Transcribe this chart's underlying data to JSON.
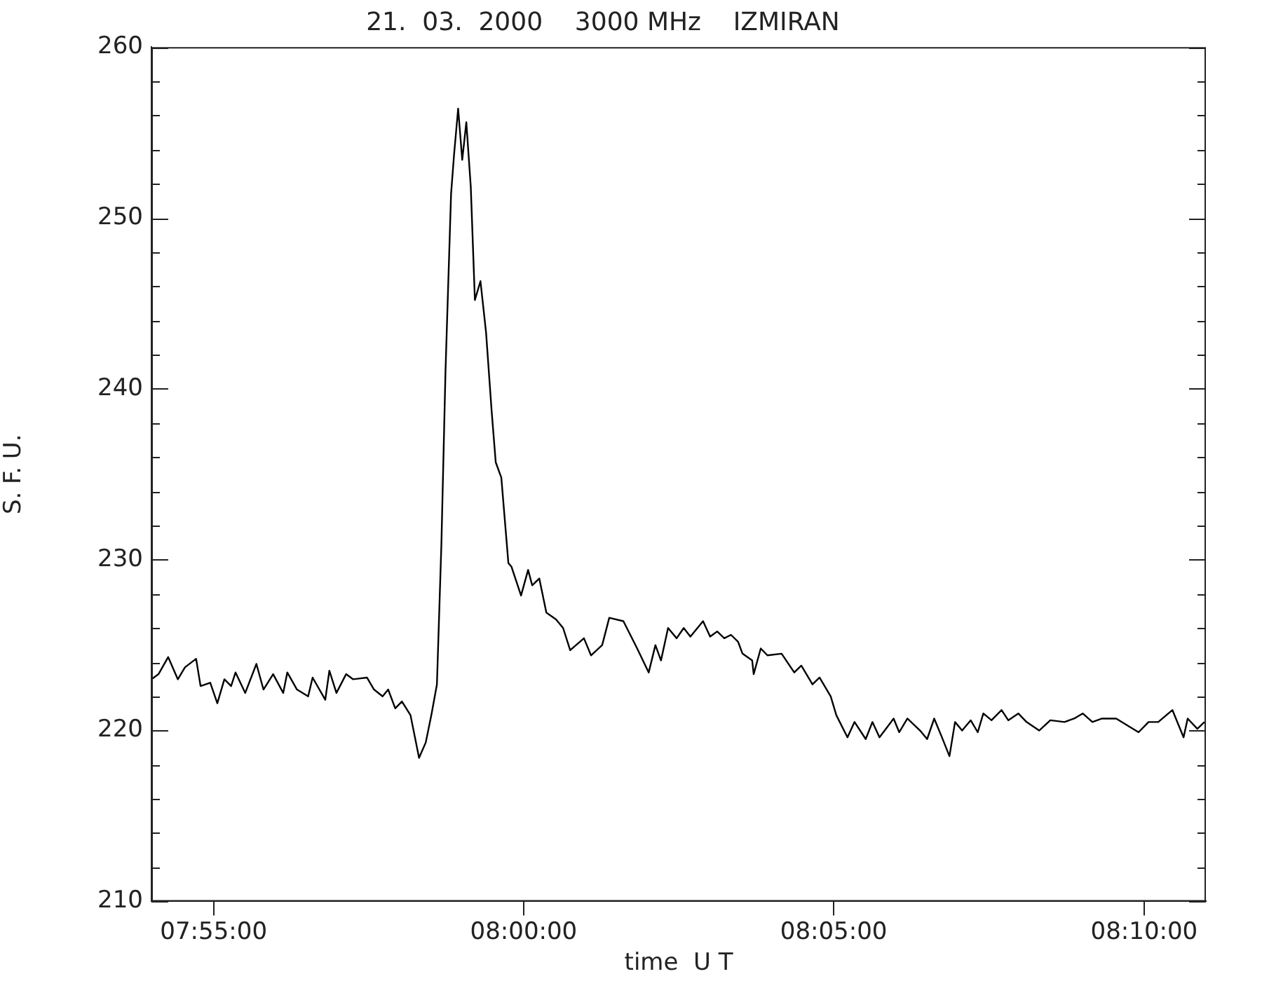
{
  "chart_data": {
    "type": "line",
    "title": "21.  03.  2000    3000 MHz    IZMIRAN",
    "xlabel": "time  U T",
    "ylabel": "S. F. U.",
    "color": "#000000",
    "marker": "none",
    "line_style": "solid",
    "legend": false,
    "x": [
      7.9,
      7.9019,
      7.9045,
      7.9071,
      7.909,
      7.912,
      7.9132,
      7.9158,
      7.9177,
      7.9196,
      7.9214,
      7.9226,
      7.9252,
      7.9282,
      7.9301,
      7.9327,
      7.9354,
      7.9365,
      7.9391,
      7.9421,
      7.9433,
      7.9467,
      7.9478,
      7.9497,
      7.9523,
      7.9542,
      7.9579,
      7.9598,
      7.9621,
      7.9636,
      7.9655,
      7.9673,
      7.9696,
      7.9719,
      7.9737,
      7.9752,
      7.9767,
      7.9779,
      7.979,
      7.9805,
      7.9813,
      7.9824,
      7.9835,
      7.9846,
      7.9858,
      7.9869,
      7.9884,
      7.9899,
      7.9914,
      7.9925,
      7.994,
      7.9959,
      7.9967,
      7.9993,
      8.0012,
      8.0023,
      8.0042,
      8.0061,
      8.0087,
      8.0106,
      8.0125,
      8.0162,
      8.0181,
      8.0211,
      8.023,
      8.0268,
      8.0305,
      8.0336,
      8.0354,
      8.0369,
      8.0388,
      8.0411,
      8.043,
      8.0448,
      8.0482,
      8.0501,
      8.052,
      8.0539,
      8.0557,
      8.0576,
      8.0588,
      8.0614,
      8.0618,
      8.0637,
      8.0655,
      8.0693,
      8.0727,
      8.0746,
      8.0776,
      8.0795,
      8.0825,
      8.084,
      8.087,
      8.0889,
      8.0919,
      8.0937,
      8.0956,
      8.0994,
      8.1009,
      8.1031,
      8.1065,
      8.1084,
      8.1103,
      8.1122,
      8.1144,
      8.1159,
      8.1178,
      8.1201,
      8.122,
      8.1235,
      8.1257,
      8.1284,
      8.1302,
      8.1329,
      8.1351,
      8.1385,
      8.1415,
      8.1453,
      8.1479,
      8.1502,
      8.1528,
      8.1554,
      8.1592,
      8.1652,
      8.1679,
      8.1705,
      8.1743,
      8.1773,
      8.1784,
      8.181,
      8.1829
    ],
    "values": [
      223.0,
      223.3,
      224.3,
      223.0,
      223.7,
      224.2,
      222.6,
      222.8,
      221.6,
      223.0,
      222.6,
      223.4,
      222.2,
      223.9,
      222.4,
      223.3,
      222.2,
      223.4,
      222.4,
      222.0,
      223.1,
      221.8,
      223.5,
      222.2,
      223.3,
      223.0,
      223.1,
      222.4,
      222.0,
      222.4,
      221.3,
      221.7,
      220.9,
      218.4,
      219.3,
      220.9,
      222.7,
      230.9,
      241.0,
      251.4,
      253.7,
      256.4,
      253.4,
      255.6,
      251.8,
      245.2,
      246.3,
      243.3,
      238.7,
      235.7,
      234.8,
      229.8,
      229.6,
      227.9,
      229.4,
      228.5,
      228.9,
      226.9,
      226.5,
      226.0,
      224.7,
      225.4,
      224.4,
      225.0,
      226.6,
      226.4,
      224.8,
      223.4,
      225.0,
      224.1,
      226.0,
      225.4,
      226.0,
      225.5,
      226.4,
      225.5,
      225.8,
      225.4,
      225.6,
      225.2,
      224.5,
      224.1,
      223.3,
      224.8,
      224.4,
      224.5,
      223.4,
      223.8,
      222.7,
      223.1,
      222.0,
      220.9,
      219.6,
      220.5,
      219.5,
      220.5,
      219.6,
      220.7,
      219.9,
      220.7,
      220.0,
      219.5,
      220.7,
      219.7,
      218.5,
      220.5,
      220.0,
      220.6,
      219.9,
      221.0,
      220.6,
      221.2,
      220.6,
      221.0,
      220.5,
      220.0,
      220.6,
      220.5,
      220.7,
      221.0,
      220.5,
      220.7,
      220.7,
      219.9,
      220.5,
      220.5,
      221.2,
      219.6,
      220.7,
      220.1,
      220.5
    ],
    "xlim": [
      7.9,
      8.1833
    ],
    "xticks": [
      {
        "value": 7.9167,
        "label": "07:55:00"
      },
      {
        "value": 8,
        "label": "08:00:00"
      },
      {
        "value": 8.0833,
        "label": "08:05:00"
      },
      {
        "value": 8.1667,
        "label": "08:10:00"
      }
    ],
    "ylim": [
      210,
      260
    ],
    "yticks": [
      210,
      {
        "value": 212,
        "label": null
      },
      {
        "value": 214,
        "label": null
      },
      {
        "value": 216,
        "label": null
      },
      {
        "value": 218,
        "label": null
      },
      220,
      {
        "value": 222,
        "label": null
      },
      {
        "value": 224,
        "label": null
      },
      {
        "value": 226,
        "label": null
      },
      {
        "value": 228,
        "label": null
      },
      230,
      {
        "value": 232,
        "label": null
      },
      {
        "value": 234,
        "label": null
      },
      {
        "value": 236,
        "label": null
      },
      {
        "value": 238,
        "label": null
      },
      240,
      {
        "value": 242,
        "label": null
      },
      {
        "value": 244,
        "label": null
      },
      {
        "value": 246,
        "label": null
      },
      {
        "value": 248,
        "label": null
      },
      250,
      {
        "value": 252,
        "label": null
      },
      {
        "value": 254,
        "label": null
      },
      {
        "value": 256,
        "label": null
      },
      {
        "value": 258,
        "label": null
      },
      260
    ]
  }
}
